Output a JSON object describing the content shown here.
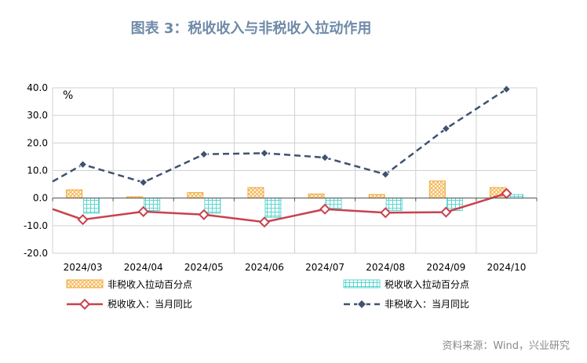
{
  "title": "图表 3：税收收入与非税收入拉动作用",
  "source": "资料来源：Wind，兴业研究",
  "colors": {
    "tax_pull": "#f0a93a",
    "nontax_pull": "#5cd6d0",
    "tax_yoy": "#c9414e",
    "nontax_yoy": "#3f5270",
    "grid": "#d0d0d0"
  },
  "chart_data": {
    "type": "bar",
    "unit_label": "%",
    "categories": [
      "2024/03",
      "2024/04",
      "2024/05",
      "2024/06",
      "2024/07",
      "2024/08",
      "2024/09",
      "2024/10"
    ],
    "ylim": [
      -20,
      40
    ],
    "yticks": [
      -20,
      -10,
      0,
      10,
      20,
      30,
      40
    ],
    "ytick_labels": [
      "-20.0",
      "-10.0",
      "0.0",
      "10.0",
      "20.0",
      "30.0",
      "40.0"
    ],
    "grid": true,
    "legend_position": "bottom",
    "bar_series": [
      {
        "name": "非税收入拉动百分点",
        "pattern": "crosshatch",
        "values": [
          3.0,
          0.5,
          2.0,
          3.8,
          1.5,
          1.3,
          6.2,
          3.8
        ]
      },
      {
        "name": "税收收入拉动百分点",
        "pattern": "grid",
        "values": [
          -5.5,
          -4.5,
          -5.5,
          -7.0,
          -4.0,
          -4.5,
          -4.5,
          1.3
        ]
      }
    ],
    "line_series": [
      {
        "name": "税收收入：当月同比",
        "style": "solid",
        "values": [
          -7.8,
          -4.9,
          -6.0,
          -8.7,
          -4.0,
          -5.3,
          -5.1,
          1.7
        ]
      },
      {
        "name": "非税收入：当月同比",
        "style": "dashed",
        "values": [
          12.2,
          5.7,
          15.9,
          16.3,
          14.7,
          8.6,
          25.2,
          39.5
        ]
      }
    ],
    "nontax_yoy_start": 6.0
  }
}
